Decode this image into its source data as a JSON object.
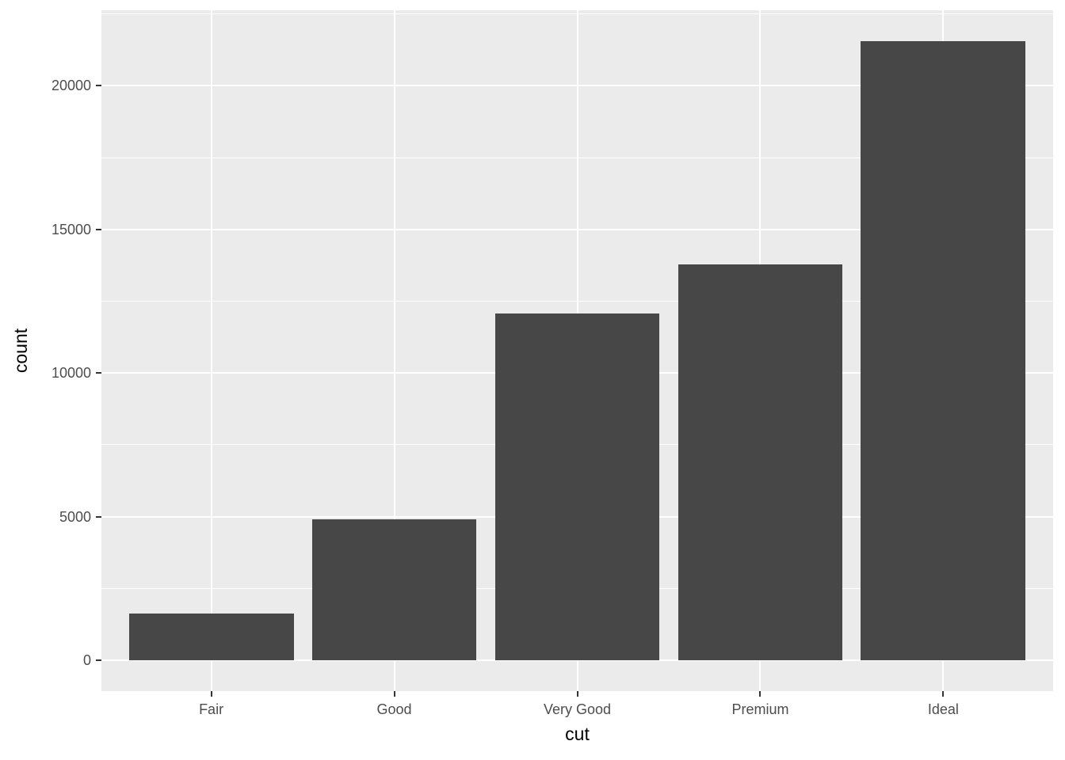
{
  "figure": {
    "kind": "ggplot-style bar chart"
  },
  "chart_data": {
    "type": "bar",
    "title": "",
    "categories": [
      "Fair",
      "Good",
      "Very Good",
      "Premium",
      "Ideal"
    ],
    "values": [
      1610,
      4906,
      12082,
      13791,
      21551
    ],
    "xlabel": "cut",
    "ylabel": "count",
    "yticks": [
      0,
      5000,
      10000,
      15000,
      20000
    ],
    "ytick_labels": [
      "0",
      "5000",
      "10000",
      "15000",
      "20000"
    ],
    "yminor": [
      2500,
      7500,
      12500,
      17500,
      22500
    ],
    "ylim": [
      -1078,
      22629
    ],
    "bar_rel_width": 0.9,
    "grid": true,
    "legend": false,
    "colors": {
      "bar_fill": "#474747",
      "panel_bg": "#EBEBEB",
      "grid_major": "#FFFFFF",
      "grid_minor": "#FFFFFF",
      "tick_label_text": "#4D4D4D",
      "axis_title_text": "#000000",
      "tick_mark": "#333333",
      "background": "#FFFFFF"
    }
  }
}
